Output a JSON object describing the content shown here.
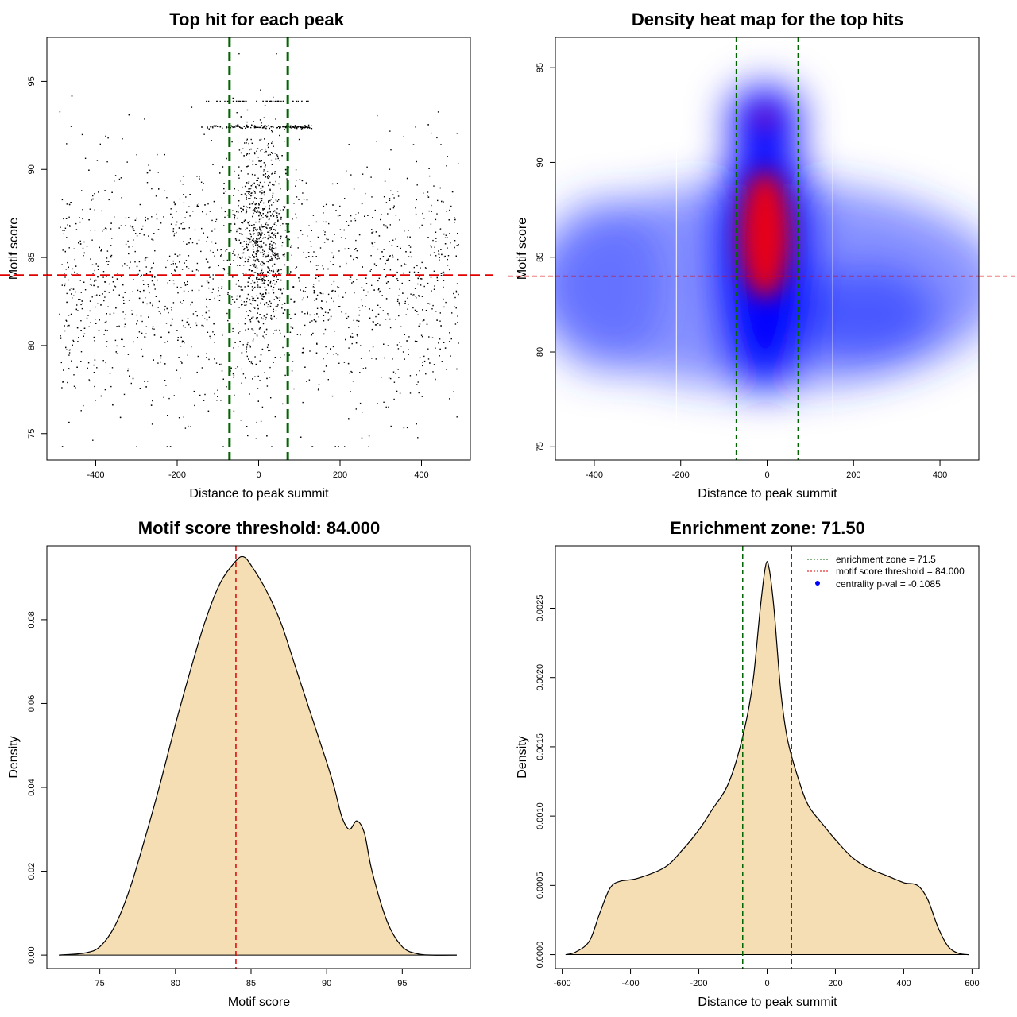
{
  "chart_data": [
    {
      "id": "scatter",
      "type": "scatter",
      "title": "Top hit for each peak",
      "xlabel": "Distance to peak summit",
      "ylabel": "Motif score",
      "xlim": [
        -520,
        520
      ],
      "ylim": [
        73.5,
        97.5
      ],
      "xticks": [
        -400,
        -200,
        0,
        200,
        400
      ],
      "yticks": [
        75,
        80,
        85,
        90,
        95
      ],
      "vlines": [
        -71.5,
        71.5
      ],
      "hline": 84,
      "vline_color": "#006400",
      "hline_color": "#e00000",
      "point_color": "#000000",
      "point_count": 3200,
      "x_range": [
        -490,
        490
      ],
      "y_range": [
        74.3,
        96.6
      ]
    },
    {
      "id": "heatmap",
      "type": "heatmap",
      "title": "Density heat map for the top hits",
      "xlabel": "Distance to peak summit",
      "ylabel": "Motif score",
      "xlim": [
        -490,
        490
      ],
      "ylim": [
        74.3,
        96.6
      ],
      "xticks": [
        -400,
        -200,
        0,
        200,
        400
      ],
      "yticks": [
        75,
        80,
        85,
        90,
        95
      ],
      "vlines": [
        -71.5,
        71.5
      ],
      "hline": 84,
      "color_scale": [
        "#ffffff",
        "#0000ff",
        "#ff0000"
      ],
      "density_peak": {
        "x": -5,
        "y": 86.2
      },
      "secondary_peaks": [
        {
          "x": -5,
          "y": 92.3
        },
        {
          "x": 230,
          "y": 82
        }
      ]
    },
    {
      "id": "score-density",
      "type": "area",
      "title": "Motif score threshold: 84.000",
      "xlabel": "Motif score",
      "ylabel": "Density",
      "xlim": [
        71.5,
        99.5
      ],
      "ylim": [
        -0.0032,
        0.0976
      ],
      "xticks": [
        75,
        80,
        85,
        90,
        95
      ],
      "yticks": [
        0.0,
        0.02,
        0.04,
        0.06,
        0.08
      ],
      "ytick_labels": [
        "0.00",
        "0.02",
        "0.04",
        "0.06",
        "0.08"
      ],
      "vline": 84,
      "fill_color": "#f5deb3",
      "x": [
        72.3,
        74,
        75,
        76,
        77,
        78,
        79,
        80,
        81,
        82,
        83,
        84,
        84.5,
        85,
        86,
        87,
        88,
        89,
        90,
        90.5,
        91,
        91.5,
        92,
        92.5,
        93,
        94,
        95,
        96,
        97,
        98.6
      ],
      "y": [
        0.0,
        0.0005,
        0.002,
        0.007,
        0.016,
        0.028,
        0.041,
        0.055,
        0.068,
        0.08,
        0.089,
        0.094,
        0.095,
        0.093,
        0.087,
        0.079,
        0.068,
        0.057,
        0.046,
        0.04,
        0.033,
        0.03,
        0.032,
        0.029,
        0.02,
        0.008,
        0.002,
        0.0003,
        0.0,
        0.0
      ]
    },
    {
      "id": "distance-density",
      "type": "area",
      "title": "Enrichment zone: 71.50",
      "xlabel": "Distance to peak summit",
      "ylabel": "Density",
      "xlim": [
        -620,
        620
      ],
      "ylim": [
        -0.0001,
        0.00295
      ],
      "xticks": [
        -600,
        -400,
        -200,
        0,
        200,
        400,
        600
      ],
      "yticks": [
        0.0,
        0.0005,
        0.001,
        0.0015,
        0.002,
        0.0025
      ],
      "ytick_labels": [
        "0.0000",
        "0.0005",
        "0.0010",
        "0.0015",
        "0.0020",
        "0.0025"
      ],
      "vlines": [
        -71.5,
        71.5
      ],
      "fill_color": "#f5deb3",
      "x": [
        -590,
        -560,
        -520,
        -490,
        -460,
        -430,
        -380,
        -300,
        -250,
        -200,
        -160,
        -120,
        -90,
        -60,
        -40,
        -20,
        -5,
        5,
        20,
        40,
        60,
        90,
        120,
        160,
        200,
        250,
        300,
        350,
        400,
        440,
        470,
        500,
        530,
        560,
        590
      ],
      "y": [
        0.0,
        2e-05,
        0.0001,
        0.0003,
        0.00048,
        0.00053,
        0.00055,
        0.00063,
        0.00075,
        0.0009,
        0.00105,
        0.0012,
        0.0014,
        0.0017,
        0.002,
        0.0025,
        0.0028,
        0.0028,
        0.0025,
        0.0019,
        0.00155,
        0.00128,
        0.00108,
        0.00095,
        0.00083,
        0.0007,
        0.00062,
        0.00057,
        0.00052,
        0.0005,
        0.0004,
        0.0002,
        6e-05,
        1e-05,
        0.0
      ]
    }
  ],
  "legend": {
    "items": [
      {
        "label": "enrichment zone = 71.5",
        "style": "dotted-line",
        "color": "#006400"
      },
      {
        "label": "motif score threshold = 84.000",
        "style": "dotted-line",
        "color": "#e00000"
      },
      {
        "label": "centrality p-val = -0.1085",
        "style": "dot",
        "color": "#0000ff"
      }
    ]
  }
}
